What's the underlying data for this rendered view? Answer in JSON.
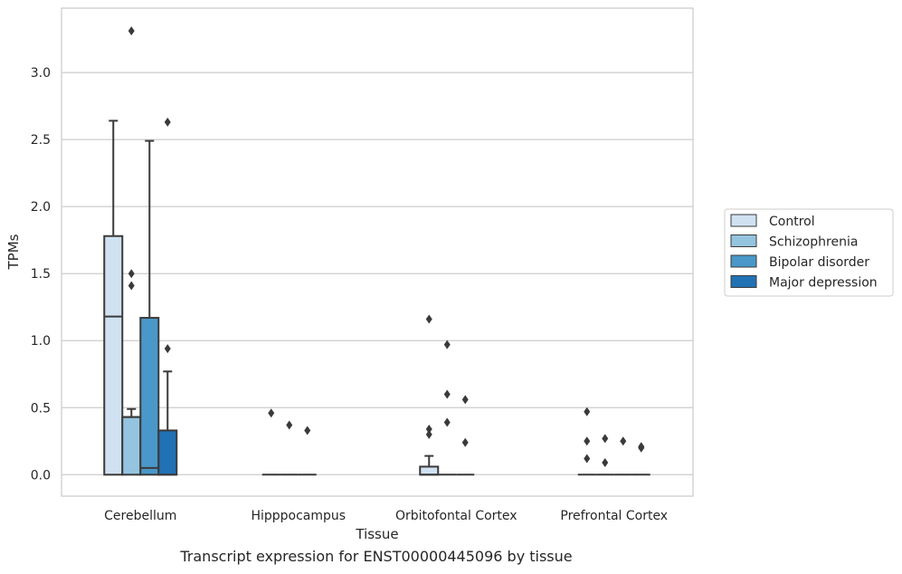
{
  "chart_data": {
    "type": "box",
    "xlabel": "Tissue",
    "ylabel": "TPMs",
    "caption": "Transcript expression for ENST00000445096 by tissue",
    "ylim": [
      -0.16,
      3.48
    ],
    "yticks": [
      "0.0",
      "0.5",
      "1.0",
      "1.5",
      "2.0",
      "2.5",
      "3.0"
    ],
    "categories": [
      "Cerebellum",
      "Hipppocampus",
      "Orbitofontal Cortex",
      "Prefrontal Cortex"
    ],
    "grid": true,
    "legend_position": "right",
    "series": [
      {
        "name": "Control",
        "color": "#d0e1f2",
        "boxes": [
          {
            "q1": 0.0,
            "median": 1.18,
            "q3": 1.78,
            "whisker_low": 0.0,
            "whisker_high": 2.64,
            "outliers": []
          },
          {
            "q1": 0.0,
            "median": 0.0,
            "q3": 0.0,
            "whisker_low": 0.0,
            "whisker_high": 0.0,
            "outliers": [
              0.46
            ]
          },
          {
            "q1": 0.0,
            "median": 0.0,
            "q3": 0.06,
            "whisker_low": 0.0,
            "whisker_high": 0.14,
            "outliers": [
              0.3,
              0.34,
              1.16
            ]
          },
          {
            "q1": 0.0,
            "median": 0.0,
            "q3": 0.0,
            "whisker_low": 0.0,
            "whisker_high": 0.0,
            "outliers": [
              0.12,
              0.25,
              0.47
            ]
          }
        ]
      },
      {
        "name": "Schizophrenia",
        "color": "#94c4df",
        "boxes": [
          {
            "q1": 0.0,
            "median": 0.43,
            "q3": 0.43,
            "whisker_low": 0.0,
            "whisker_high": 0.49,
            "outliers": [
              1.41,
              1.5,
              3.31
            ]
          },
          {
            "q1": 0.0,
            "median": 0.0,
            "q3": 0.0,
            "whisker_low": 0.0,
            "whisker_high": 0.0,
            "outliers": [
              0.37
            ]
          },
          {
            "q1": 0.0,
            "median": 0.0,
            "q3": 0.0,
            "whisker_low": 0.0,
            "whisker_high": 0.0,
            "outliers": [
              0.39,
              0.6,
              0.97
            ]
          },
          {
            "q1": 0.0,
            "median": 0.0,
            "q3": 0.0,
            "whisker_low": 0.0,
            "whisker_high": 0.0,
            "outliers": [
              0.09,
              0.27
            ]
          }
        ]
      },
      {
        "name": "Bipolar disorder",
        "color": "#4a98c9",
        "boxes": [
          {
            "q1": 0.0,
            "median": 0.05,
            "q3": 1.17,
            "whisker_low": 0.0,
            "whisker_high": 2.49,
            "outliers": []
          },
          {
            "q1": 0.0,
            "median": 0.0,
            "q3": 0.0,
            "whisker_low": 0.0,
            "whisker_high": 0.0,
            "outliers": [
              0.33
            ]
          },
          {
            "q1": 0.0,
            "median": 0.0,
            "q3": 0.0,
            "whisker_low": 0.0,
            "whisker_high": 0.0,
            "outliers": [
              0.24,
              0.56
            ]
          },
          {
            "q1": 0.0,
            "median": 0.0,
            "q3": 0.0,
            "whisker_low": 0.0,
            "whisker_high": 0.0,
            "outliers": [
              0.25
            ]
          }
        ]
      },
      {
        "name": "Major depression",
        "color": "#2171b5",
        "boxes": [
          {
            "q1": 0.0,
            "median": 0.0,
            "q3": 0.33,
            "whisker_low": 0.0,
            "whisker_high": 0.77,
            "outliers": [
              0.94,
              2.63
            ]
          },
          null,
          null,
          {
            "q1": 0.0,
            "median": 0.0,
            "q3": 0.0,
            "whisker_low": 0.0,
            "whisker_high": 0.0,
            "outliers": [
              0.2,
              0.21
            ]
          }
        ]
      }
    ]
  }
}
